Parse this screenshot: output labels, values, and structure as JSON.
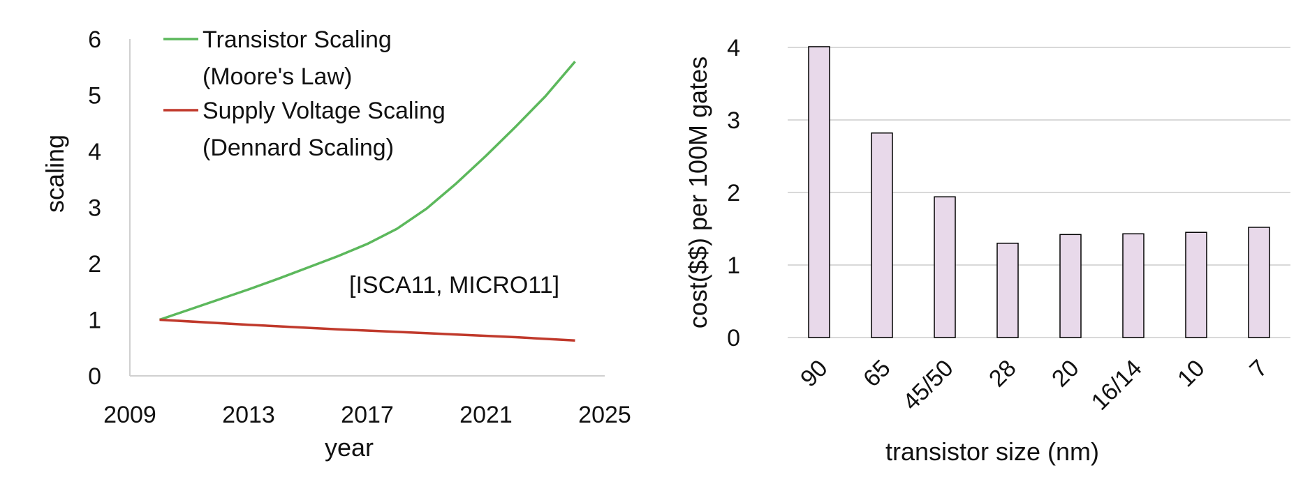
{
  "chart_data": [
    {
      "type": "line",
      "title": "",
      "xlabel": "year",
      "ylabel": "scaling",
      "xlim": [
        2009,
        2025
      ],
      "ylim": [
        0,
        6
      ],
      "xticks": [
        "2009",
        "2013",
        "2017",
        "2021",
        "2025"
      ],
      "yticks": [
        "0",
        "1",
        "2",
        "3",
        "4",
        "5",
        "6"
      ],
      "grid": false,
      "legend_position": "top-left",
      "annotation": "[ISCA11, MICRO11]",
      "series": [
        {
          "name": "Transistor Scaling (Moore's Law)",
          "name_lines": [
            "Transistor Scaling",
            "(Moore's Law)"
          ],
          "color": "#5cb85c",
          "x": [
            2010,
            2011,
            2012,
            2013,
            2014,
            2015,
            2016,
            2017,
            2018,
            2019,
            2020,
            2021,
            2022,
            2023,
            2024
          ],
          "y": [
            1.0,
            1.18,
            1.36,
            1.54,
            1.73,
            1.93,
            2.13,
            2.35,
            2.62,
            2.98,
            3.43,
            3.92,
            4.44,
            4.98,
            5.6
          ]
        },
        {
          "name": "Supply Voltage Scaling (Dennard Scaling)",
          "name_lines": [
            "Supply Voltage Scaling",
            "(Dennard Scaling)"
          ],
          "color": "#c0392b",
          "x": [
            2010,
            2013,
            2016,
            2019,
            2022,
            2024
          ],
          "y": [
            1.0,
            0.91,
            0.83,
            0.76,
            0.69,
            0.63
          ]
        }
      ]
    },
    {
      "type": "bar",
      "title": "",
      "xlabel": "transistor size (nm)",
      "ylabel": "cost($$) per 100M gates",
      "ylim": [
        0,
        4
      ],
      "yticks": [
        "0",
        "1",
        "2",
        "3",
        "4"
      ],
      "grid": true,
      "categories": [
        "90",
        "65",
        "45/50",
        "28",
        "20",
        "16/14",
        "10",
        "7"
      ],
      "values": [
        4.01,
        2.82,
        1.94,
        1.3,
        1.42,
        1.43,
        1.45,
        1.52
      ],
      "bar_color": "#e8d9ea",
      "bar_edge_color": "#000000"
    }
  ]
}
